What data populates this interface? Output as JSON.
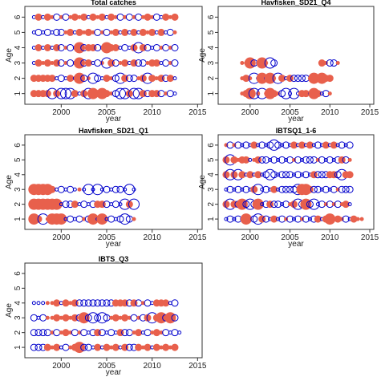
{
  "colors": {
    "positive": "#e8604c",
    "negative": "#0000cc",
    "axis": "#333333",
    "background": "#ffffff"
  },
  "chart_data": [
    {
      "type": "scatter",
      "title": "Total catches",
      "xlabel": "year",
      "ylabel": "Age",
      "xlim": [
        1996,
        2015.5
      ],
      "ylim": [
        0.3,
        6.7
      ],
      "x_ticks": [
        "2000",
        "2005",
        "2010",
        "2015"
      ],
      "y_ticks": [
        "1",
        "2",
        "3",
        "4",
        "5",
        "6"
      ],
      "rows": [
        {
          "age": 1,
          "signs": "ppppnpnnnpnpnpppppnnnpnnpnppnpnn",
          "sizes": "2222323332123323212332332222212123",
          "start": 1997
        },
        {
          "age": 2,
          "signs": "pppppnnnpnpnpnnnppnnpnnppnpppnpn",
          "sizes": "2222212121321321212322212321222123",
          "start": 1997
        },
        {
          "age": 3,
          "signs": "npppppnpnnpnpnnpnpnppnpnnpppnnpn",
          "sizes": "1212122121322121322121222122121221",
          "start": 1997
        },
        {
          "age": 4,
          "signs": "npnpnpnpnnpnppnnpppnnnpnpnnnpnpn",
          "sizes": "1212122121322221322121232212121221",
          "start": 1997
        },
        {
          "age": 5,
          "signs": "nnnnnnnppnppppnpnppnpnpnpppnpnnp",
          "sizes": "1212122121212121212121212121212121",
          "start": 1997
        },
        {
          "age": 6,
          "signs": "npnppnpnppppnpppnppnpnpnpppnnppp",
          "sizes": "1212121212121212121212121212121212",
          "start": 1997
        }
      ]
    },
    {
      "type": "scatter",
      "title": "Havfisken_SD21_Q4",
      "xlabel": "year",
      "ylabel": "Age",
      "xlim": [
        1996,
        2015.5
      ],
      "ylim": [
        0.3,
        6.7
      ],
      "x_ticks": [
        "2000",
        "2005",
        "2010",
        "2015"
      ],
      "y_ticks": [
        "1",
        "2",
        "3",
        "4",
        "5",
        "6"
      ],
      "rows": [
        {
          "age": 1,
          "signs": "pppnpnppppnnnnnppnppnnp",
          "sizes": "1233131321231312213212111",
          "start": 1999
        },
        {
          "age": 2,
          "signs": "pppnnpnppnpnpnnnnpppppp",
          "sizes": "1213131313212222213232211",
          "start": 1999
        },
        {
          "age": 3,
          "signs": "pppnnppnn___________ppnnp",
          "sizes": "1132131322000000000021221",
          "start": 1999
        }
      ]
    },
    {
      "type": "scatter",
      "title": "Havfisken_SD21_Q1",
      "xlabel": "year",
      "ylabel": "Age",
      "xlim": [
        1996,
        2015.5
      ],
      "ylim": [
        0.3,
        6.7
      ],
      "x_ticks": [
        "2000",
        "2005",
        "2010",
        "2015"
      ],
      "y_ticks": [
        "1",
        "2",
        "3",
        "4",
        "5",
        "6"
      ],
      "rows": [
        {
          "age": 1,
          "signs": "ppnppppnnnnpnpnpnnnnnnp",
          "sizes": "3231333121212313121232131",
          "start": 1997
        },
        {
          "age": 2,
          "signs": "ppppppnnnpnnnnppnnnnnpn",
          "sizes": "3333331222121222212132323",
          "start": 1997
        },
        {
          "age": 3,
          "signs": "pppppnnnnnpnnnnnnnnnnnn",
          "sizes": "3333212121113131212213121",
          "start": 1997
        }
      ]
    },
    {
      "type": "scatter",
      "title": "IBTSQ1_1-6",
      "xlabel": "year",
      "ylabel": "Age",
      "xlim": [
        1996,
        2015.5
      ],
      "ylim": [
        0.3,
        6.7
      ],
      "x_ticks": [
        "2000",
        "2005",
        "2010",
        "2015"
      ],
      "y_ticks": [
        "1",
        "2",
        "3",
        "4",
        "5",
        "6"
      ],
      "rows": [
        {
          "age": 1,
          "signs": "nnnnnppnnpnnpnnpnnnpnnnpnpppppnnppp",
          "sizes": "1212131232212121212121221231212121",
          "start": 1997
        },
        {
          "age": 2,
          "signs": "pnpnpnnnpnnpnnnnppnnpnnnnpnpnppn",
          "sizes": "2322323231222212123232312121212121",
          "start": 1997
        },
        {
          "age": 3,
          "signs": "nnnnnnnpnnnnpnnnnnnpppnnnnnnpnnn",
          "sizes": "1212121231212122223332221212122212",
          "start": 1997
        },
        {
          "age": 4,
          "signs": "pnpnpnpnpnnnnnnnnnnnnnpnnnppnnpp",
          "sizes": "2323212121232122212121222222232222",
          "start": 1997
        },
        {
          "age": 5,
          "signs": "pnppppnppnnnnnnnnpnnnnnpnnnnnpnp",
          "sizes": "2321221122212121212122212121222121",
          "start": 1997
        },
        {
          "age": 6,
          "signs": "pnpnnnnpnnnnnnnnnpnpnpnnnpnpnnnn",
          "sizes": "1212121212123212121212121212121212",
          "start": 1997
        }
      ]
    },
    {
      "type": "scatter",
      "title": "IBTS_Q3",
      "xlabel": "year",
      "ylabel": "Age",
      "xlim": [
        1996,
        2015.5
      ],
      "ylim": [
        0.3,
        6.7
      ],
      "x_ticks": [
        "2000",
        "2005",
        "2010",
        "2015"
      ],
      "y_ticks": [
        "1",
        "2",
        "3",
        "4",
        "5",
        "6"
      ],
      "rows": [
        {
          "age": 1,
          "signs": "nnnpppnnpppnnnpnpppnpnnpppnppppp",
          "sizes": "2222121212322121212122221212121212",
          "start": 1997
        },
        {
          "age": 2,
          "signs": "nnnnpnpppnpnnnpnnnnpnnppnnpppnnnn",
          "sizes": "2222121212121222121222121212121212",
          "start": 1997
        },
        {
          "age": 3,
          "signs": "nnnpppppppnpnnnnnpppppnpnpnppnpn",
          "sizes": "2121121212232323212121212232323232",
          "start": 1997
        },
        {
          "age": 4,
          "signs": "nnnpppnpppnnnnnnnnpppnpnpnnpppnn",
          "sizes": "1111121212222222222222221212221222",
          "start": 1997
        }
      ]
    }
  ]
}
